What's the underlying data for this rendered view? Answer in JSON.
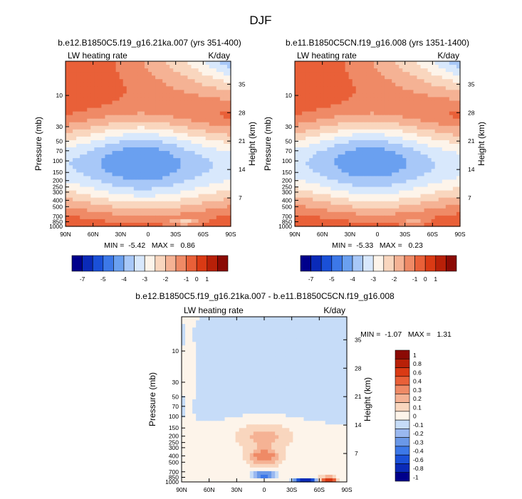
{
  "page_title": "DJF",
  "colors": {
    "scale_top": [
      "#00008b",
      "#0a2ab8",
      "#1a50d8",
      "#3c78e8",
      "#6aa0f0",
      "#a8c8f8",
      "#d8e8fc",
      "#fdf4ea",
      "#f9d6be",
      "#f5b294",
      "#ef8a66",
      "#e96038",
      "#da3a14",
      "#b82008",
      "#8b0a04"
    ],
    "scale_diff": [
      "#00008b",
      "#0a2ab8",
      "#1a50d8",
      "#3c78e8",
      "#6a98e8",
      "#9ab8f0",
      "#c6dcf8",
      "#fdf4ea",
      "#f9d6be",
      "#f5b294",
      "#ef8a66",
      "#e96038",
      "#da3a14",
      "#b82008",
      "#8b0a04"
    ],
    "deep_red": "#d44514"
  },
  "chart_data": [
    {
      "type": "heatmap",
      "name": "panel-1",
      "title": "b.e12.B1850C5.f19_g16.21ka.007 (yrs 351-400)",
      "subtitle_left": "LW heating rate",
      "subtitle_right": "K/day",
      "xlabel": "",
      "ylabel": "Pressure (mb)",
      "ylabel_right": "Height (km)",
      "x_ticks": [
        "90N",
        "60N",
        "30N",
        "0",
        "30S",
        "60S",
        "90S"
      ],
      "x_range": [
        90,
        -90
      ],
      "y_ticks": [
        "10",
        "30",
        "50",
        "70",
        "100",
        "150",
        "200",
        "250",
        "300",
        "400",
        "500",
        "700",
        "850",
        "1000"
      ],
      "y_range_mb": [
        1000,
        3
      ],
      "y_right_ticks": [
        "35",
        "28",
        "21",
        "14",
        "7"
      ],
      "min_max_text": "MIN =  -5.42   MAX =   0.86",
      "colorbar_labels": [
        "-7",
        "-5",
        "-4",
        "-3",
        "-2",
        "-1",
        "0",
        "1"
      ]
    },
    {
      "type": "heatmap",
      "name": "panel-2",
      "title": "b.e11.B1850C5CN.f19_g16.008 (yrs 1351-1400)",
      "subtitle_left": "LW heating rate",
      "subtitle_right": "K/day",
      "xlabel": "",
      "ylabel": "Pressure (mb)",
      "ylabel_right": "Height (km)",
      "x_ticks": [
        "90N",
        "60N",
        "30N",
        "0",
        "30S",
        "60S",
        "90S"
      ],
      "x_range": [
        90,
        -90
      ],
      "y_ticks": [
        "10",
        "30",
        "50",
        "70",
        "100",
        "150",
        "200",
        "250",
        "300",
        "400",
        "500",
        "700",
        "850",
        "1000"
      ],
      "y_range_mb": [
        1000,
        3
      ],
      "y_right_ticks": [
        "35",
        "28",
        "21",
        "14",
        "7"
      ],
      "min_max_text": "MIN =  -5.33   MAX =   0.23",
      "colorbar_labels": [
        "-7",
        "-5",
        "-4",
        "-3",
        "-2",
        "-1",
        "0",
        "1"
      ]
    },
    {
      "type": "heatmap",
      "name": "panel-diff",
      "title": "b.e12.B1850C5.f19_g16.21ka.007 - b.e11.B1850C5CN.f19_g16.008",
      "subtitle_left": "LW heating rate",
      "subtitle_right": "K/day",
      "xlabel": "",
      "ylabel": "Pressure (mb)",
      "ylabel_right": "Height (km)",
      "x_ticks": [
        "90N",
        "60N",
        "30N",
        "0",
        "30S",
        "60S",
        "90S"
      ],
      "x_range": [
        90,
        -90
      ],
      "y_ticks": [
        "10",
        "30",
        "50",
        "70",
        "100",
        "150",
        "200",
        "250",
        "300",
        "400",
        "500",
        "700",
        "850",
        "1000"
      ],
      "y_range_mb": [
        1000,
        3
      ],
      "y_right_ticks": [
        "35",
        "28",
        "21",
        "14",
        "7"
      ],
      "min_max_text": "MIN =  -1.07   MAX =   1.31",
      "colorbar_labels": [
        "1",
        "0.8",
        "0.6",
        "0.4",
        "0.3",
        "0.2",
        "0.1",
        "0",
        "-0.1",
        "-0.2",
        "-0.3",
        "-0.4",
        "-0.6",
        "-0.8",
        "-1"
      ]
    }
  ]
}
